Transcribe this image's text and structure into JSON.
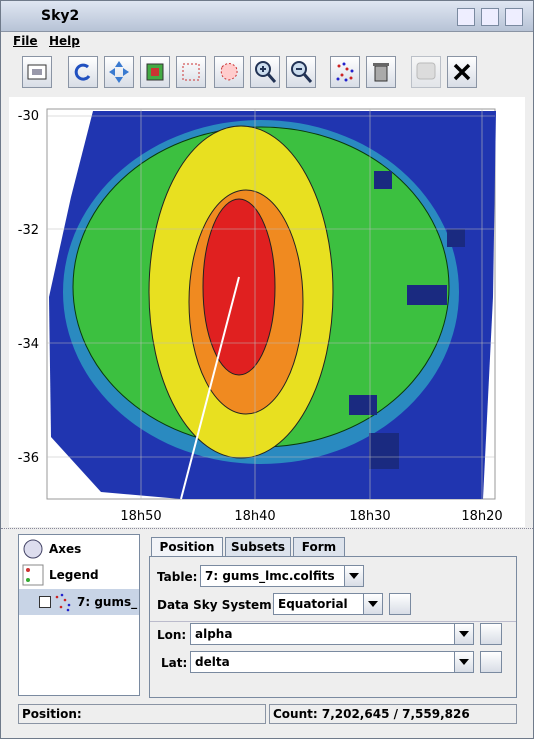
{
  "window": {
    "title": "Sky2"
  },
  "menu": [
    "File",
    "Help"
  ],
  "plot": {
    "y_tick_labels": [
      "-30",
      "-32",
      "-34",
      "-36"
    ],
    "x_tick_labels": [
      "18h50",
      "18h40",
      "18h30",
      "18h20"
    ]
  },
  "layers": [
    "Axes",
    "Legend",
    "7: gums_"
  ],
  "tabs": [
    "Position",
    "Subsets",
    "Form"
  ],
  "form": {
    "table": {
      "label": "Table:",
      "value": "7: gums_lmc.colfits"
    },
    "sky_system": {
      "label": "Data Sky System:",
      "value": "Equatorial"
    },
    "lon": {
      "label": "Lon:",
      "value": "alpha"
    },
    "lat": {
      "label": "Lat:",
      "value": "delta"
    }
  },
  "status": {
    "position": "Position:",
    "count": "Count: 7,202,645 / 7,559,826"
  }
}
